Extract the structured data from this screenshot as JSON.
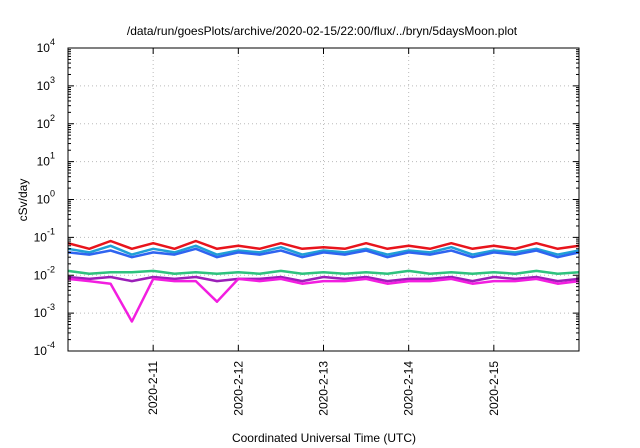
{
  "chart_data": {
    "type": "line",
    "title": "/data/run/goesPlots/archive/2020-02-15/22:00/flux/../bryn/5daysMoon.plot",
    "xlabel": "Coordinated Universal Time (UTC)",
    "ylabel": "cSv/day",
    "x_range": [
      "2020-02-10T00:00",
      "2020-02-16T00:00"
    ],
    "y_scale": "log",
    "ylim": [
      0.0001,
      10000
    ],
    "y_ticks": [
      {
        "base": "10",
        "exp": "-4",
        "value": 0.0001
      },
      {
        "base": "10",
        "exp": "-3",
        "value": 0.001
      },
      {
        "base": "10",
        "exp": "-2",
        "value": 0.01
      },
      {
        "base": "10",
        "exp": "-1",
        "value": 0.1
      },
      {
        "base": "10",
        "exp": "0",
        "value": 1
      },
      {
        "base": "10",
        "exp": "1",
        "value": 10
      },
      {
        "base": "10",
        "exp": "2",
        "value": 100
      },
      {
        "base": "10",
        "exp": "3",
        "value": 1000
      },
      {
        "base": "10",
        "exp": "4",
        "value": 10000
      }
    ],
    "x_ticks": [
      {
        "label": "2020-2-11",
        "value": "2020-02-11T00:00"
      },
      {
        "label": "2020-2-12",
        "value": "2020-02-12T00:00"
      },
      {
        "label": "2020-2-13",
        "value": "2020-02-13T00:00"
      },
      {
        "label": "2020-2-14",
        "value": "2020-02-14T00:00"
      },
      {
        "label": "2020-2-15",
        "value": "2020-02-15T00:00"
      }
    ],
    "grid": true,
    "x": [
      "2020-02-10T00:00",
      "2020-02-10T06:00",
      "2020-02-10T12:00",
      "2020-02-10T18:00",
      "2020-02-11T00:00",
      "2020-02-11T06:00",
      "2020-02-11T12:00",
      "2020-02-11T18:00",
      "2020-02-12T00:00",
      "2020-02-12T06:00",
      "2020-02-12T12:00",
      "2020-02-12T18:00",
      "2020-02-13T00:00",
      "2020-02-13T06:00",
      "2020-02-13T12:00",
      "2020-02-13T18:00",
      "2020-02-14T00:00",
      "2020-02-14T06:00",
      "2020-02-14T12:00",
      "2020-02-14T18:00",
      "2020-02-15T00:00",
      "2020-02-15T06:00",
      "2020-02-15T12:00",
      "2020-02-15T18:00",
      "2020-02-16T00:00"
    ],
    "series": [
      {
        "color": "#e8141c",
        "values": [
          0.07,
          0.05,
          0.08,
          0.05,
          0.07,
          0.05,
          0.08,
          0.05,
          0.06,
          0.05,
          0.07,
          0.05,
          0.055,
          0.05,
          0.07,
          0.05,
          0.06,
          0.05,
          0.07,
          0.05,
          0.06,
          0.05,
          0.07,
          0.05,
          0.06
        ]
      },
      {
        "color": "#1f9fd6",
        "values": [
          0.05,
          0.04,
          0.06,
          0.035,
          0.05,
          0.04,
          0.06,
          0.035,
          0.045,
          0.04,
          0.055,
          0.035,
          0.045,
          0.04,
          0.05,
          0.035,
          0.045,
          0.04,
          0.055,
          0.035,
          0.045,
          0.04,
          0.05,
          0.035,
          0.045
        ]
      },
      {
        "color": "#2f64f0",
        "values": [
          0.04,
          0.035,
          0.045,
          0.03,
          0.04,
          0.035,
          0.05,
          0.03,
          0.04,
          0.035,
          0.045,
          0.03,
          0.04,
          0.035,
          0.045,
          0.03,
          0.04,
          0.035,
          0.045,
          0.03,
          0.04,
          0.035,
          0.045,
          0.03,
          0.04
        ]
      },
      {
        "color": "#2ec27e",
        "values": [
          0.013,
          0.011,
          0.012,
          0.012,
          0.013,
          0.011,
          0.012,
          0.011,
          0.012,
          0.011,
          0.013,
          0.011,
          0.012,
          0.011,
          0.012,
          0.011,
          0.013,
          0.011,
          0.012,
          0.011,
          0.012,
          0.011,
          0.013,
          0.011,
          0.012
        ]
      },
      {
        "color": "#9b1fb8",
        "values": [
          0.009,
          0.008,
          0.009,
          0.007,
          0.009,
          0.008,
          0.009,
          0.007,
          0.008,
          0.008,
          0.009,
          0.007,
          0.009,
          0.008,
          0.009,
          0.007,
          0.008,
          0.008,
          0.009,
          0.007,
          0.009,
          0.008,
          0.009,
          0.007,
          0.008
        ]
      },
      {
        "color": "#f21ee0",
        "values": [
          0.008,
          0.007,
          0.006,
          0.0006,
          0.008,
          0.007,
          0.007,
          0.002,
          0.008,
          0.007,
          0.008,
          0.006,
          0.007,
          0.007,
          0.008,
          0.006,
          0.007,
          0.007,
          0.008,
          0.006,
          0.007,
          0.007,
          0.008,
          0.006,
          0.007
        ]
      }
    ]
  }
}
